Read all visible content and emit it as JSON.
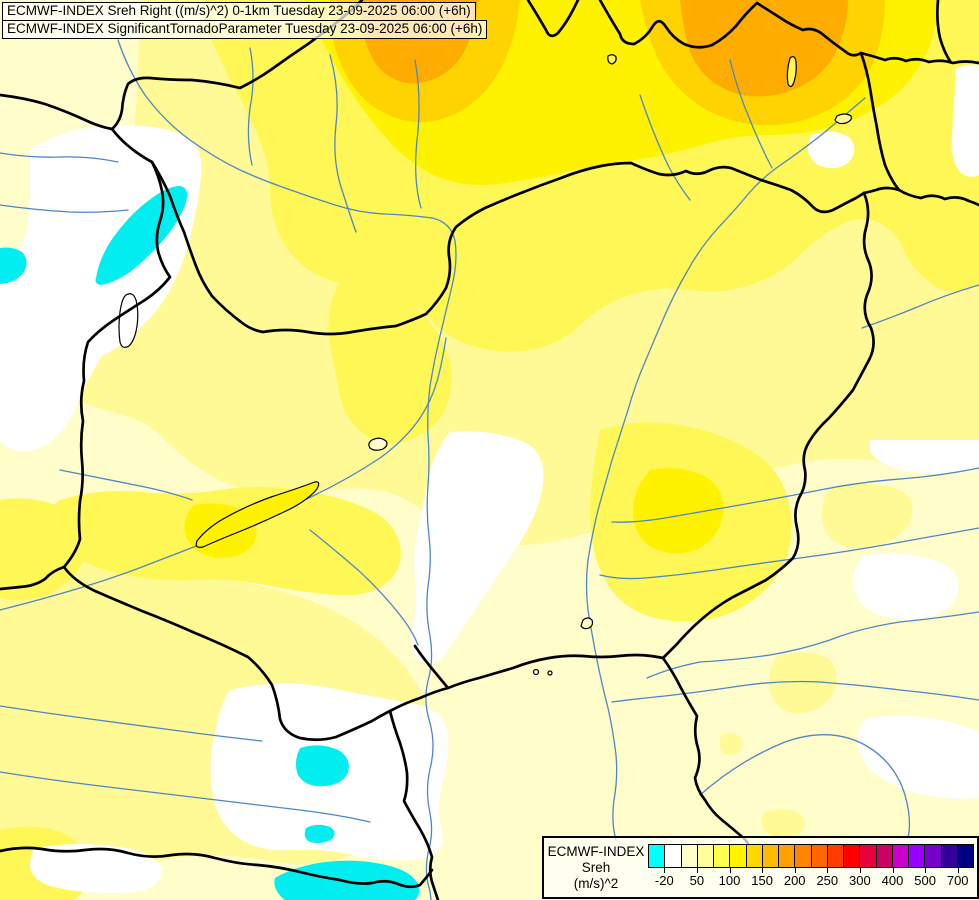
{
  "title": {
    "line1": "ECMWF-INDEX Sreh Right ((m/s)^2) 0-1km Tuesday 23-09-2025 06:00 (+6h)",
    "line2": "ECMWF-INDEX SignificantTornadoParameter Tuesday 23-09-2025 06:00 (+6h)"
  },
  "legend": {
    "label_line1": "ECMWF-INDEX",
    "label_line2": "Sreh",
    "label_line3": "(m/s)^2",
    "colorbar": {
      "cell_colors": [
        "#00FFFF",
        "#FFFFFF",
        "#FFFFCC",
        "#FFFF99",
        "#FFFF4D",
        "#FFF500",
        "#FFD700",
        "#FFBB00",
        "#FFA000",
        "#FF8400",
        "#FF6600",
        "#FF3C00",
        "#FF0000",
        "#E8003C",
        "#CC0066",
        "#CC00CC",
        "#9900FF",
        "#7700CC",
        "#330099",
        "#000080"
      ],
      "tick_labels": [
        "-20",
        "50",
        "100",
        "150",
        "200",
        "250",
        "300",
        "400",
        "500",
        "700"
      ],
      "tick_boundary_indices": [
        1,
        3,
        5,
        7,
        9,
        11,
        13,
        15,
        17,
        19
      ]
    }
  },
  "map": {
    "palette": {
      "cream": "#FFFDC9",
      "pale_yellow": "#FFFA96",
      "light_yellow": "#FFF756",
      "yellow": "#FFF200",
      "gold": "#FFD300",
      "orange": "#FFAC00",
      "white_patch": "#FFFFFF",
      "cyan_patch": "#00EEF0",
      "river_blue": "#4D86C8",
      "border_black": "#000000"
    }
  }
}
